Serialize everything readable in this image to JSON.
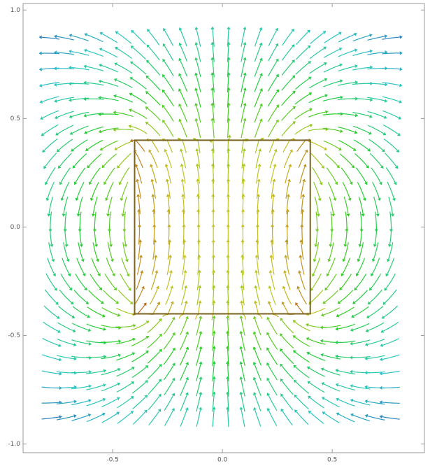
{
  "chart_data": {
    "type": "stream",
    "xlim": [
      -0.908,
      0.92
    ],
    "ylim": [
      -1.04,
      1.03
    ],
    "xticks": [
      -0.5,
      {
        "value": 0,
        "label": "0.0"
      },
      0.5
    ],
    "yticks": [
      {
        "value": -1,
        "label": "-1.0"
      },
      -0.5,
      {
        "value": 0,
        "label": "0.0"
      },
      0.5,
      {
        "value": 1,
        "label": "1.0"
      }
    ],
    "magnet": {
      "xlim": [
        -0.4,
        0.4
      ],
      "ylim": [
        -0.4,
        0.4
      ],
      "color": "#7a6420"
    },
    "frame_color": "#999999"
  }
}
